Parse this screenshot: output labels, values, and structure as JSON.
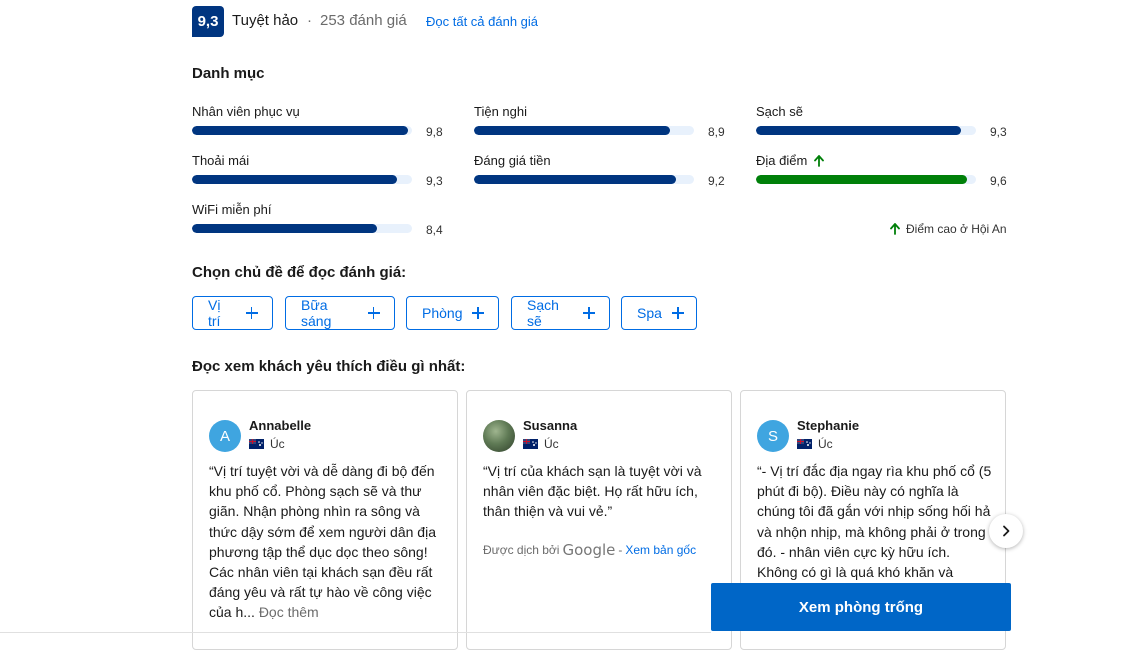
{
  "header": {
    "score": "9,3",
    "rating_word": "Tuyệt hảo",
    "separator": "·",
    "review_count": "253 đánh giá",
    "read_all_link": "Đọc tất cả đánh giá"
  },
  "categories": {
    "title": "Danh mục",
    "items": [
      {
        "label": "Nhân viên phục vụ",
        "value": "9,8",
        "score": 9.8
      },
      {
        "label": "Tiện nghi",
        "value": "8,9",
        "score": 8.9
      },
      {
        "label": "Sạch sẽ",
        "value": "9,3",
        "score": 9.3
      },
      {
        "label": "Thoải mái",
        "value": "9,3",
        "score": 9.3
      },
      {
        "label": "Đáng giá tiền",
        "value": "9,2",
        "score": 9.2
      },
      {
        "label": "Địa điểm",
        "value": "9,6",
        "score": 9.6,
        "highlight": true
      },
      {
        "label": "WiFi miễn phí",
        "value": "8,4",
        "score": 8.4
      }
    ],
    "high_score_note": "Điểm cao ở Hội An",
    "bar_color": "#003580",
    "highlight_color": "#008009",
    "track_color": "#e8f1fc"
  },
  "topics": {
    "title": "Chọn chủ đề để đọc đánh giá:",
    "chips": [
      "Vị trí",
      "Bữa sáng",
      "Phòng",
      "Sạch sẽ",
      "Spa"
    ]
  },
  "reviews": {
    "title": "Đọc xem khách yêu thích điều gì nhất:",
    "items": [
      {
        "name": "Annabelle",
        "initial": "A",
        "country": "Úc",
        "text": "“Vị trí tuyệt vời và dễ dàng đi bộ đến khu phố cổ. Phòng sạch sẽ và thư giãn. Nhận phòng nhìn ra sông và thức dậy sớm để xem người dân địa phương tập thể dục dọc theo sông! Các nhân viên tại khách sạn đều rất đáng yêu và rất tự hào về công việc của h...",
        "read_more": "Đọc thêm"
      },
      {
        "name": "Susanna",
        "initial": "",
        "country": "Úc",
        "text": "“Vị trí của khách sạn là tuyệt vời và nhân viên đặc biệt. Họ rất hữu ích, thân thiện và vui vẻ.”",
        "translated_by": "Được dịch bởi",
        "translator": "Google",
        "translated_sep": "-",
        "see_original": "Xem bản gốc"
      },
      {
        "name": "Stephanie",
        "initial": "S",
        "country": "Úc",
        "text": "“- Vị trí đắc địa ngay rìa khu phố cổ (5 phút đi bộ). Điều này có nghĩa là chúng tôi đã gắn với nhịp sống hối hả và nhộn nhịp, mà không phải ở trong đó. - nhân viên cực kỳ hữu ích. Không có gì là quá khó khăn và"
      }
    ]
  },
  "cta": {
    "label": "Xem phòng trống"
  },
  "icons": {
    "next": "chevron-right-icon",
    "up_arrow": "arrow-up-icon",
    "plus": "plus-icon",
    "flag": "australia-flag-icon"
  },
  "colors": {
    "brand_dark": "#003580",
    "link": "#006ce4",
    "cta": "#0066c7",
    "good": "#008009"
  }
}
